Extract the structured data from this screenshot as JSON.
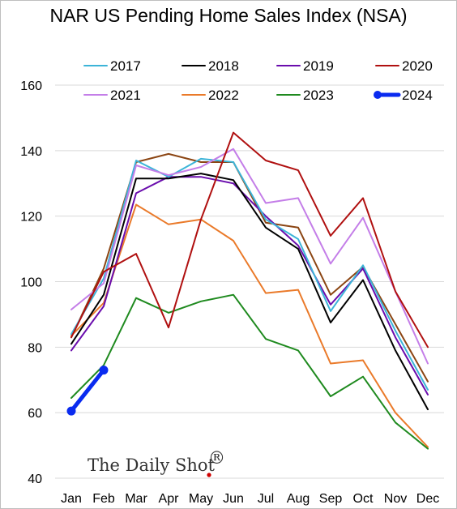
{
  "chart_data": {
    "type": "line",
    "title": "NAR US Pending Home Sales Index (NSA)",
    "categories": [
      "Jan",
      "Feb",
      "Mar",
      "Apr",
      "May",
      "Jun",
      "Jul",
      "Aug",
      "Sep",
      "Oct",
      "Nov",
      "Dec"
    ],
    "ylim": [
      40,
      160
    ],
    "yticks": [
      40,
      60,
      80,
      100,
      120,
      140,
      160
    ],
    "grid": "horizontal",
    "legend": "top",
    "series": [
      {
        "name": "2017",
        "color": "#3cb4d8",
        "width": 2,
        "values": [
          84,
          101,
          137,
          132,
          137.5,
          136.5,
          119,
          113,
          91,
          105,
          85,
          67
        ]
      },
      {
        "name": "2018",
        "color": "#000000",
        "width": 2,
        "values": [
          81,
          96,
          131.5,
          131.5,
          133,
          131,
          116.5,
          110,
          87.5,
          100.5,
          79,
          61
        ]
      },
      {
        "name": "2019",
        "color": "#6a0dad",
        "width": 2,
        "values": [
          79,
          92.5,
          127,
          132,
          132,
          130,
          120,
          111,
          93,
          104,
          83,
          65.5
        ]
      },
      {
        "name": "2020",
        "color": "#b01010",
        "width": 2,
        "values": [
          83,
          103,
          108.5,
          86,
          119,
          145.5,
          137,
          134,
          114,
          125.5,
          97,
          80
        ]
      },
      {
        "name": "2021",
        "color": "#c47ee8",
        "width": 2,
        "values": [
          91.5,
          99.5,
          135.5,
          132.5,
          135,
          140.5,
          124,
          125.5,
          105.5,
          119.5,
          97,
          75
        ]
      },
      {
        "name": "2022",
        "color": "#ea7a2a",
        "width": 2,
        "values": [
          83.5,
          93.5,
          123.5,
          117.5,
          119,
          112.5,
          96.5,
          97.5,
          75,
          76,
          60,
          49.5
        ]
      },
      {
        "name": "2023",
        "color": "#1f8a1f",
        "width": 2,
        "values": [
          64.5,
          74.5,
          95,
          90.5,
          94,
          96,
          82.5,
          79,
          65,
          71,
          57,
          49
        ]
      },
      {
        "name": "2024",
        "color": "#0a2bf0",
        "width": 5,
        "markers": true,
        "values": [
          60.5,
          73,
          null,
          null,
          null,
          null,
          null,
          null,
          null,
          null,
          null,
          null
        ]
      }
    ],
    "extra_series": [
      {
        "color": "#8b4513",
        "width": 2,
        "values": [
          83,
          104,
          136.5,
          139,
          136.5,
          136.5,
          118,
          116.5,
          96,
          104.5,
          87,
          69.5
        ]
      }
    ]
  },
  "watermark": {
    "text": "The Daily Shot",
    "mark": "®"
  }
}
